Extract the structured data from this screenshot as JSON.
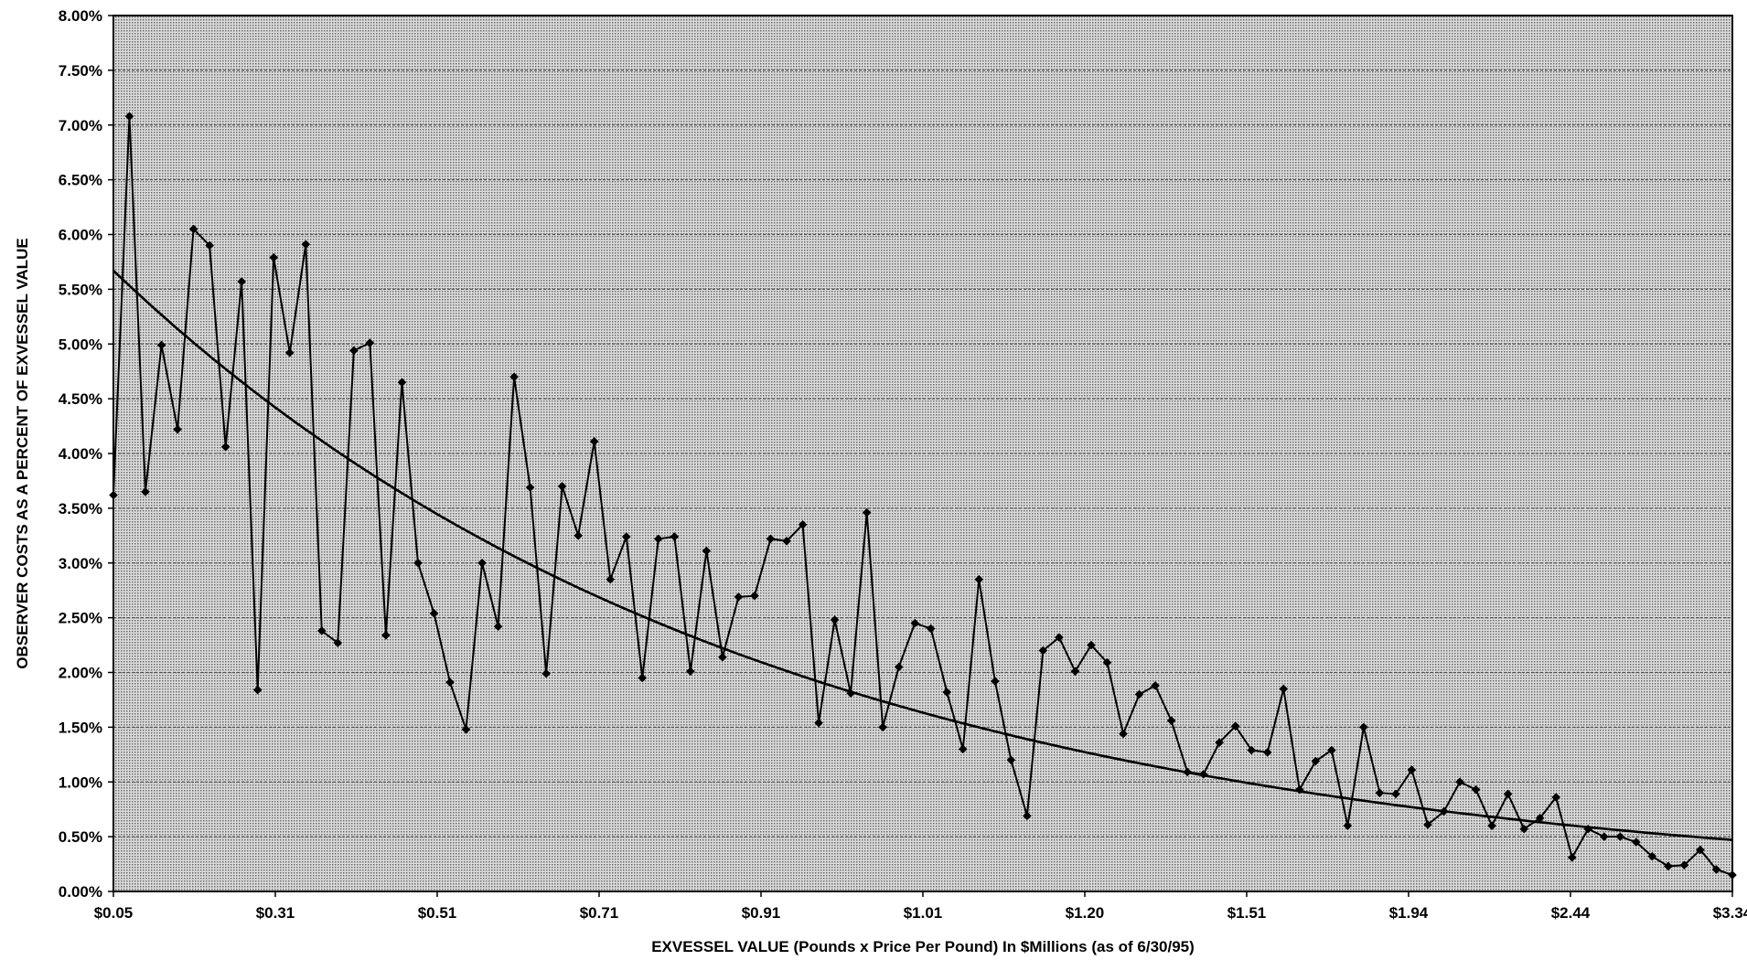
{
  "chart_data": {
    "type": "line",
    "title": "",
    "xlabel": "EXVESSEL VALUE (Pounds x Price Per Pound) In $Millions (as of 6/30/95)",
    "ylabel": "OBSERVER COSTS AS A PERCENT OF EXVESSEL VALUE",
    "ylim": [
      0,
      8
    ],
    "y_unit": "percent",
    "y_ticks": [
      "0.00%",
      "0.50%",
      "1.00%",
      "1.50%",
      "2.00%",
      "2.50%",
      "3.00%",
      "3.50%",
      "4.00%",
      "4.50%",
      "5.00%",
      "5.50%",
      "6.00%",
      "6.50%",
      "7.00%",
      "7.50%",
      "8.00%"
    ],
    "x_tick_labels": [
      "$0.05",
      "$0.31",
      "$0.51",
      "$0.71",
      "$0.91",
      "$1.01",
      "$1.20",
      "$1.51",
      "$1.94",
      "$2.44",
      "$3.34"
    ],
    "grid": true,
    "legend": "none",
    "series": [
      {
        "kind": "observed",
        "color": "#000000",
        "values": [
          3.62,
          7.08,
          3.65,
          4.99,
          4.22,
          6.05,
          5.9,
          4.06,
          5.57,
          1.84,
          5.79,
          4.92,
          5.91,
          2.38,
          2.27,
          4.94,
          5.01,
          2.34,
          4.65,
          3.0,
          2.54,
          1.91,
          1.48,
          3.0,
          2.42,
          4.7,
          3.69,
          1.99,
          3.7,
          3.25,
          4.11,
          2.85,
          3.24,
          1.95,
          3.22,
          3.24,
          2.01,
          3.11,
          2.14,
          2.69,
          2.7,
          3.22,
          3.2,
          3.35,
          1.54,
          2.48,
          1.81,
          3.46,
          1.5,
          2.05,
          2.45,
          2.4,
          1.82,
          1.3,
          2.85,
          1.92,
          1.2,
          0.69,
          2.2,
          2.32,
          2.01,
          2.25,
          2.09,
          1.44,
          1.8,
          1.88,
          1.56,
          1.09,
          1.07,
          1.36,
          1.51,
          1.29,
          1.27,
          1.85,
          0.93,
          1.19,
          1.29,
          0.6,
          1.5,
          0.9,
          0.89,
          1.11,
          0.61,
          0.73,
          1.0,
          0.93,
          0.6,
          0.89,
          0.57,
          0.67,
          0.86,
          0.31,
          0.57,
          0.5,
          0.5,
          0.45,
          0.32,
          0.23,
          0.24,
          0.38,
          0.2,
          0.15
        ]
      },
      {
        "kind": "trend",
        "color": "#000000",
        "values": [
          5.67,
          0.47
        ]
      }
    ]
  }
}
